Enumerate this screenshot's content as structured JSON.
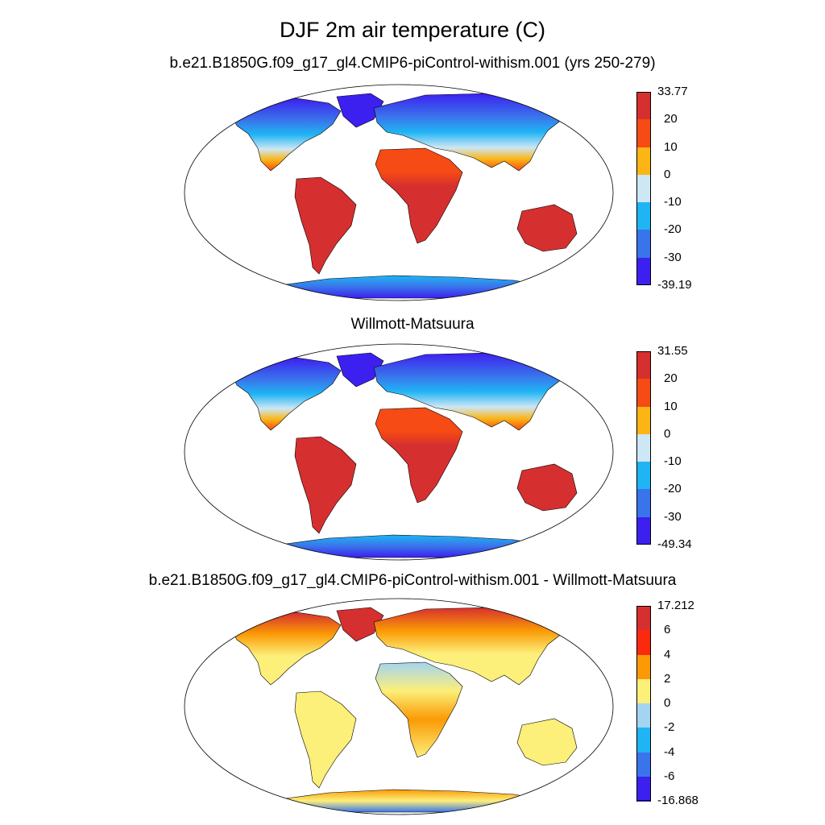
{
  "figure": {
    "title": "DJF 2m air temperature (C)"
  },
  "panels": [
    {
      "id": "model",
      "title": "b.e21.B1850G.f09_g17_gl4.CMIP6-piControl-withism.001 (yrs 250-279)",
      "colorbar": {
        "labels": [
          "33.77",
          "20",
          "10",
          "0",
          "-10",
          "-20",
          "-30",
          "-39.19"
        ],
        "colors": [
          "#d62f2f",
          "#f64b14",
          "#fbb515",
          "#cde7f5",
          "#1fb4f4",
          "#3a74eb",
          "#3c20f0"
        ]
      }
    },
    {
      "id": "obs",
      "title": "Willmott-Matsuura",
      "colorbar": {
        "labels": [
          "31.55",
          "20",
          "10",
          "0",
          "-10",
          "-20",
          "-30",
          "-49.34"
        ],
        "colors": [
          "#d62f2f",
          "#f64b14",
          "#fbb515",
          "#cde7f5",
          "#1fb4f4",
          "#3a74eb",
          "#3c20f0"
        ]
      }
    },
    {
      "id": "diff",
      "title": "b.e21.B1850G.f09_g17_gl4.CMIP6-piControl-withism.001 - Willmott-Matsuura",
      "colorbar": {
        "labels": [
          "17.212",
          "6",
          "4",
          "2",
          "0",
          "-2",
          "-4",
          "-6",
          "-16.868"
        ],
        "colors": [
          "#d62f2f",
          "#fb2a0f",
          "#fb9a05",
          "#fcef7a",
          "#a3d4f2",
          "#1fb4f4",
          "#3a74eb",
          "#3c20f0"
        ]
      }
    }
  ]
}
